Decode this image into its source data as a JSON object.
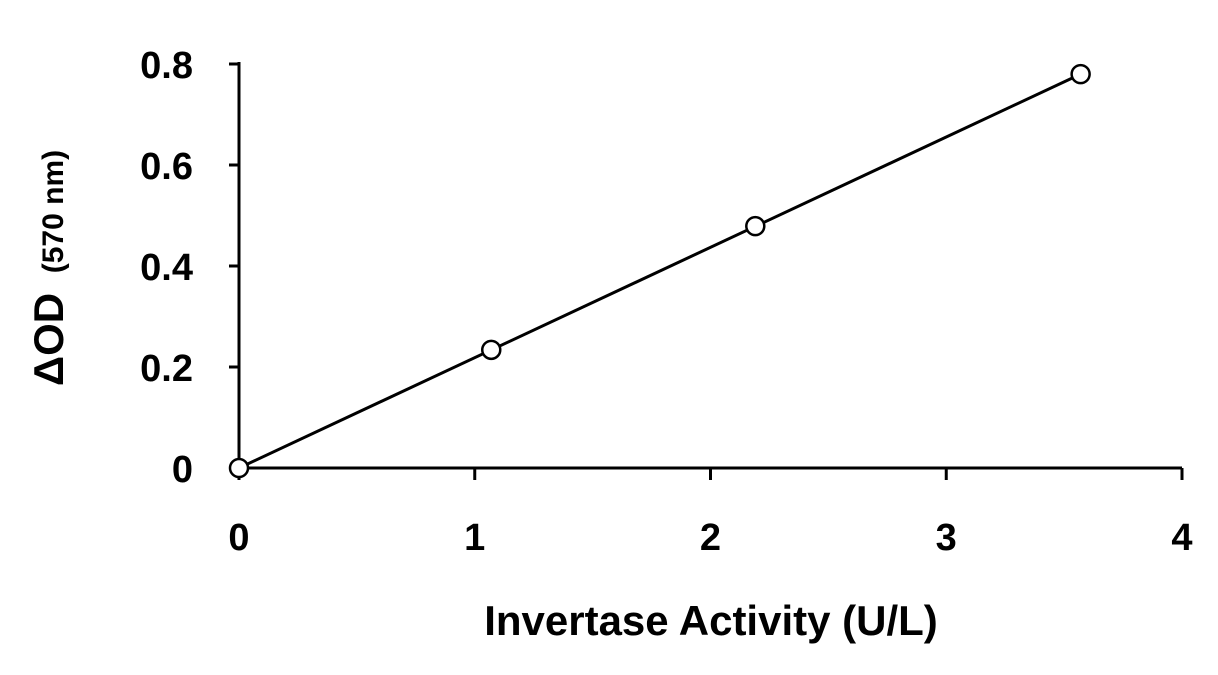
{
  "chart_data": {
    "type": "scatter",
    "title": "",
    "xlabel": "Invertase Activity (U/L)",
    "ylabel_main": "ΔOD",
    "ylabel_unit": "(570 nm)",
    "xlim": [
      0,
      4
    ],
    "ylim": [
      0,
      0.8
    ],
    "x_ticks": [
      0,
      1,
      2,
      3,
      4
    ],
    "x_tick_labels": [
      "0",
      "1",
      "2",
      "3",
      "4"
    ],
    "y_ticks": [
      0,
      0.2,
      0.4,
      0.6,
      0.8
    ],
    "y_tick_labels": [
      "0",
      "0.2",
      "0.4",
      "0.6",
      "0.8"
    ],
    "grid": false,
    "legend": "none",
    "marker": "open-circle",
    "series": [
      {
        "x": [
          0,
          1.07,
          2.19,
          3.57
        ],
        "y": [
          0,
          0.234,
          0.479,
          0.78
        ],
        "trendline": {
          "x": [
            0,
            3.57
          ],
          "y": [
            0,
            0.78
          ]
        }
      }
    ],
    "colors": {
      "line": "#000000",
      "marker_fill": "#ffffff",
      "marker_stroke": "#000000"
    }
  }
}
